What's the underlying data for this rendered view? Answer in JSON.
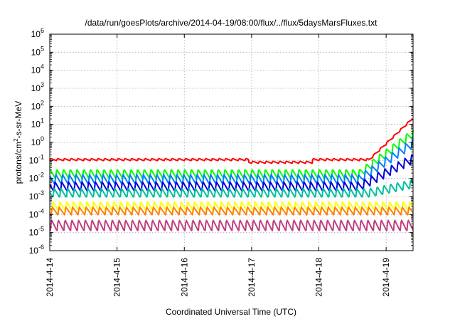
{
  "chart_data": {
    "type": "line",
    "title": "/data/run/goesPlots/archive/2014-04-19/08:00/flux/../flux/5daysMarsFluxes.txt",
    "xlabel": "Coordinated Universal Time (UTC)",
    "ylabel_parts": {
      "pre": "protons/cm",
      "sup": "2",
      "post": "-s-sr-MeV"
    },
    "y_scale": "log",
    "ylim": [
      1e-06,
      1000000.0
    ],
    "y_ticks": [
      {
        "base": "10",
        "exp": "-6",
        "value": 1e-06
      },
      {
        "base": "10",
        "exp": "-5",
        "value": 1e-05
      },
      {
        "base": "10",
        "exp": "-4",
        "value": 0.0001
      },
      {
        "base": "10",
        "exp": "-3",
        "value": 0.001
      },
      {
        "base": "10",
        "exp": "-2",
        "value": 0.01
      },
      {
        "base": "10",
        "exp": "-1",
        "value": 0.1
      },
      {
        "base": "10",
        "exp": "0",
        "value": 1
      },
      {
        "base": "10",
        "exp": "1",
        "value": 10
      },
      {
        "base": "10",
        "exp": "2",
        "value": 100
      },
      {
        "base": "10",
        "exp": "3",
        "value": 1000
      },
      {
        "base": "10",
        "exp": "4",
        "value": 10000
      },
      {
        "base": "10",
        "exp": "5",
        "value": 100000
      },
      {
        "base": "10",
        "exp": "6",
        "value": 1000000
      }
    ],
    "xlim": [
      0,
      5.4
    ],
    "x_ticks": [
      {
        "label": "2014-4-14",
        "value": 0
      },
      {
        "label": "2014-4-15",
        "value": 1
      },
      {
        "label": "2014-4-16",
        "value": 2
      },
      {
        "label": "2014-4-17",
        "value": 3
      },
      {
        "label": "2014-4-18",
        "value": 4
      },
      {
        "label": "2014-4-19",
        "value": 5
      }
    ],
    "grid": true,
    "series": [
      {
        "color": "#ff0000",
        "base_logy": -0.95,
        "amp": 0.12,
        "period": 0.1,
        "dip_at": 3.0,
        "rise_start": 4.75,
        "end_logy": 1.35
      },
      {
        "color": "#00ff00",
        "base_logy": -1.75,
        "amp": 0.55,
        "period": 0.1,
        "rise_start": 4.6,
        "end_logy": 0.5
      },
      {
        "color": "#0080ff",
        "base_logy": -2.05,
        "amp": 0.55,
        "period": 0.1,
        "rise_start": 4.6,
        "end_logy": -0.05
      },
      {
        "color": "#0000dd",
        "base_logy": -2.45,
        "amp": 0.55,
        "period": 0.1,
        "rise_start": 4.6,
        "end_logy": -0.9
      },
      {
        "color": "#00c0a0",
        "base_logy": -2.8,
        "amp": 0.55,
        "period": 0.1,
        "rise_start": 4.75,
        "end_logy": -2.3
      },
      {
        "color": "#ffff00",
        "base_logy": -3.55,
        "amp": 0.5,
        "period": 0.1
      },
      {
        "color": "#ff8000",
        "base_logy": -3.8,
        "amp": 0.45,
        "period": 0.1
      },
      {
        "color": "#c04080",
        "base_logy": -4.6,
        "amp": 0.65,
        "period": 0.1
      }
    ]
  }
}
